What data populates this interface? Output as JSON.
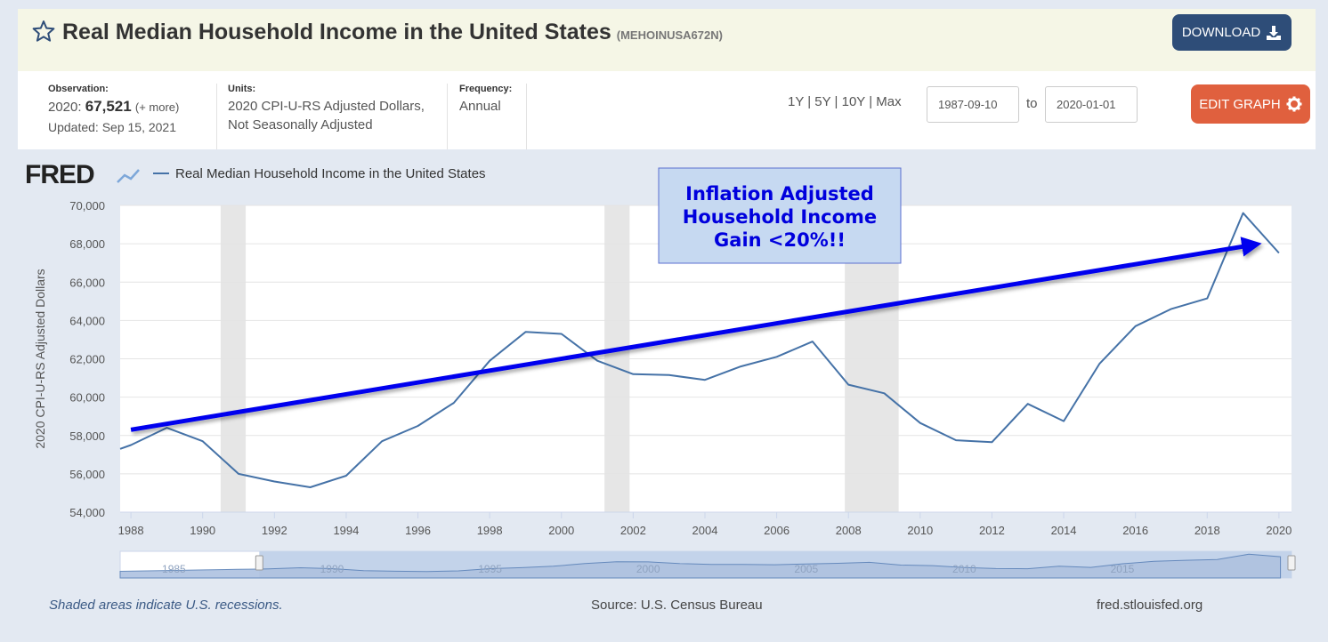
{
  "header": {
    "title": "Real Median Household Income in the United States",
    "series_id": "(MEHOINUSA672N)",
    "download_label": "DOWNLOAD"
  },
  "info": {
    "observation_label": "Observation:",
    "observation_year": "2020:",
    "observation_value": "67,521",
    "observation_more": "(+ more)",
    "updated": "Updated: Sep 15, 2021",
    "units_label": "Units:",
    "units_line1": "2020 CPI-U-RS Adjusted Dollars,",
    "units_line2": "Not Seasonally Adjusted",
    "frequency_label": "Frequency:",
    "frequency_value": "Annual",
    "ranges": "1Y | 5Y | 10Y | Max",
    "date_from": "1987-09-10",
    "to_label": "to",
    "date_to": "2020-01-01",
    "edit_label": "EDIT GRAPH"
  },
  "colors": {
    "line": "#4572a7",
    "annotation_arrow": "#0000ee",
    "annotation_text": "#0000dd",
    "annotation_bg": "#c6d9f1",
    "recession": "#e6e6e6",
    "navigator_fill": "#aec2e0"
  },
  "chart_data": {
    "type": "line",
    "logo": "FRED",
    "legend": "Real Median Household Income in the United States",
    "ylabel": "2020 CPI-U-RS Adjusted Dollars",
    "xlim": [
      1987.7,
      2020.35
    ],
    "ylim": [
      54000,
      70000
    ],
    "y_ticks": [
      54000,
      56000,
      58000,
      60000,
      62000,
      64000,
      66000,
      68000,
      70000
    ],
    "y_tick_labels": [
      "54,000",
      "56,000",
      "58,000",
      "60,000",
      "62,000",
      "64,000",
      "66,000",
      "68,000",
      "70,000"
    ],
    "x_ticks": [
      1988,
      1990,
      1992,
      1994,
      1996,
      1998,
      2000,
      2002,
      2004,
      2006,
      2008,
      2010,
      2012,
      2014,
      2016,
      2018,
      2020
    ],
    "x_tick_labels": [
      "1988",
      "1990",
      "1992",
      "1994",
      "1996",
      "1998",
      "2000",
      "2002",
      "2004",
      "2006",
      "2008",
      "2010",
      "2012",
      "2014",
      "2016",
      "2018",
      "2020"
    ],
    "recessions": [
      [
        1990.5,
        1991.2
      ],
      [
        2001.2,
        2001.9
      ],
      [
        2007.9,
        2009.4
      ]
    ],
    "series": [
      {
        "name": "Real Median Household Income in the United States",
        "x": [
          1987.7,
          1988,
          1989,
          1990,
          1991,
          1992,
          1993,
          1994,
          1995,
          1996,
          1997,
          1998,
          1999,
          2000,
          2001,
          2002,
          2003,
          2004,
          2005,
          2006,
          2007,
          2008,
          2009,
          2010,
          2011,
          2012,
          2013,
          2014,
          2015,
          2016,
          2017,
          2018,
          2019,
          2020
        ],
        "y": [
          57300,
          57500,
          58400,
          57700,
          56000,
          55600,
          55300,
          55900,
          57700,
          58500,
          59700,
          61900,
          63400,
          63300,
          61900,
          61200,
          61150,
          60900,
          61600,
          62100,
          62900,
          60650,
          60200,
          58650,
          57750,
          57650,
          59650,
          58750,
          61750,
          63700,
          64600,
          65150,
          69600,
          67521
        ]
      }
    ],
    "annotation": {
      "text_lines": [
        "Inflation Adjusted",
        "Household Income",
        "Gain <20%!!"
      ],
      "arrow_start": [
        1988,
        58300
      ],
      "arrow_end": [
        2019.3,
        67950
      ]
    },
    "navigator": {
      "tick_labels": [
        "1985",
        "1990",
        "1995",
        "2000",
        "2005",
        "2010",
        "2015"
      ],
      "tick_years": [
        1985,
        1990,
        1995,
        2000,
        2005,
        2010,
        2015
      ],
      "range": [
        1983.3,
        2020.35
      ],
      "selected": [
        1987.7,
        2020.35
      ]
    }
  },
  "footer": {
    "note": "Shaded areas indicate U.S. recessions.",
    "source": "Source: U.S. Census Bureau",
    "site": "fred.stlouisfed.org"
  }
}
